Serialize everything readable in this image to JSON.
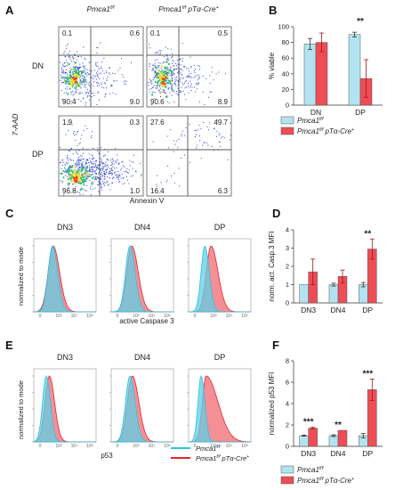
{
  "colors": {
    "blue": "#9ad7ea",
    "red": "#ee4d55",
    "blue_dark": "#2bc4e0",
    "red_dark": "#e8242e"
  },
  "panels": {
    "a": "A",
    "b": "B",
    "c": "C",
    "d": "D",
    "e": "E",
    "f": "F"
  },
  "groups": {
    "control": "Pmca1",
    "control_sup": "f/f",
    "mutant": "Pmca1",
    "mutant_sup": "f/f",
    "mutant_suffix": "pTα-Cre",
    "mutant_plus": "+"
  },
  "flow": {
    "row_labels": [
      "DN",
      "DP"
    ],
    "ylabel": "7-AAD",
    "xlabel": "Annexin V",
    "quadrants": [
      {
        "tl": "0.1",
        "tr": "0.6",
        "bl": "90.4",
        "br": "9.0"
      },
      {
        "tl": "0.1",
        "tr": "0.5",
        "bl": "90.6",
        "br": "8.9"
      },
      {
        "tl": "1.9",
        "tr": "0.3",
        "bl": "96.8",
        "br": "1.0"
      },
      {
        "tl": "27.6",
        "tr": "49.7",
        "bl": "16.4",
        "br": "6.3"
      }
    ]
  },
  "hist": {
    "c_titles": [
      "DN3",
      "DN4",
      "DP"
    ],
    "c_xlabel": "active Caspase 3",
    "ylabel": "normalized to mode",
    "e_titles": [
      "DN3",
      "DN4",
      "DP"
    ],
    "e_xlabel": "p53",
    "tick_labels": [
      "0",
      "10³",
      "10⁴",
      "10⁵"
    ]
  },
  "chart_data": [
    {
      "type": "bar",
      "panel": "B",
      "categories": [
        "DN",
        "DP"
      ],
      "series": [
        {
          "name": "Pmca1 f/f",
          "values": [
            78,
            90
          ],
          "errors": [
            7,
            3
          ]
        },
        {
          "name": "Pmca1 f/f pTα-Cre+",
          "values": [
            80,
            34
          ],
          "errors": [
            12,
            24
          ]
        }
      ],
      "ylabel": "% viable",
      "ylim": [
        0,
        100
      ],
      "yticks": [
        "0",
        "20",
        "40",
        "60",
        "80",
        "100"
      ],
      "annotations": [
        {
          "category": "DP",
          "text": "**"
        }
      ]
    },
    {
      "type": "bar",
      "panel": "D",
      "categories": [
        "DN3",
        "DN4",
        "DP"
      ],
      "series": [
        {
          "name": "Pmca1 f/f",
          "values": [
            1.0,
            1.0,
            1.0
          ],
          "errors": [
            0.0,
            0.08,
            0.12
          ]
        },
        {
          "name": "Pmca1 f/f pTα-Cre+",
          "values": [
            1.7,
            1.45,
            2.95
          ],
          "errors": [
            0.7,
            0.35,
            0.55
          ]
        }
      ],
      "ylabel": "norm. act. Casp.3 MFI",
      "ylim": [
        0,
        4
      ],
      "yticks": [
        "0",
        "1",
        "2",
        "3",
        "4"
      ],
      "annotations": [
        {
          "category": "DP",
          "text": "**"
        }
      ]
    },
    {
      "type": "bar",
      "panel": "F",
      "categories": [
        "DN3",
        "DN4",
        "DP"
      ],
      "series": [
        {
          "name": "Pmca1 f/f",
          "values": [
            1.0,
            1.0,
            1.0
          ],
          "errors": [
            0.05,
            0.08,
            0.2
          ]
        },
        {
          "name": "Pmca1 f/f pTα-Cre+",
          "values": [
            1.7,
            1.5,
            5.3
          ],
          "errors": [
            0.08,
            0.0,
            1.0
          ]
        }
      ],
      "ylabel": "normalized p53 MFI",
      "ylim": [
        0,
        8
      ],
      "yticks": [
        "0",
        "2",
        "4",
        "6",
        "8"
      ],
      "annotations": [
        {
          "category": "DN3",
          "text": "***"
        },
        {
          "category": "DN4",
          "text": "**"
        },
        {
          "category": "DP",
          "text": "***"
        }
      ]
    }
  ]
}
